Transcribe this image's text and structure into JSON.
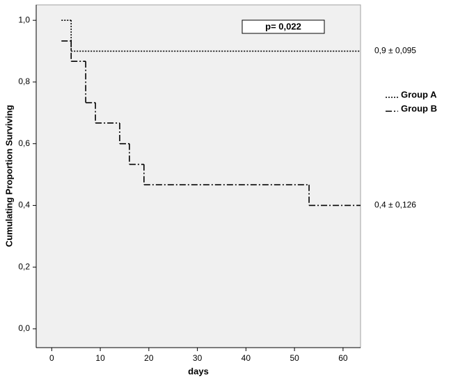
{
  "chart_data": {
    "type": "step",
    "ylabel": "Cumulating Proportion Surviving",
    "xlabel": "days",
    "p_value_label": "p= 0,022",
    "annotations": [
      "0,9 ± 0,095",
      "0,4 ± 0,126"
    ],
    "xlim": [
      -3.2,
      63.6
    ],
    "xticks": [
      0,
      10,
      20,
      30,
      40,
      50,
      60
    ],
    "ylim": [
      -0.061,
      1.05
    ],
    "yticks": [
      {
        "value": 0,
        "label": "0,0"
      },
      {
        "value": 0.2,
        "label": "0,2"
      },
      {
        "value": 0.4,
        "label": "0,4"
      },
      {
        "value": 0.6,
        "label": "0,6"
      },
      {
        "value": 0.8,
        "label": "0,8"
      },
      {
        "value": 1.0,
        "label": "1,0"
      }
    ],
    "series": [
      {
        "name": "Group A",
        "color": "#000000",
        "dash": "2,2",
        "x": [
          2,
          4
        ],
        "values": [
          1.0,
          0.9
        ]
      },
      {
        "name": "Group B",
        "color": "#000000",
        "dash": "9,3,2,3",
        "x": [
          2,
          4,
          7,
          9,
          14,
          16,
          19,
          53
        ],
        "values": [
          0.933,
          0.867,
          0.733,
          0.667,
          0.6,
          0.533,
          0.467,
          0.4
        ]
      }
    ]
  }
}
